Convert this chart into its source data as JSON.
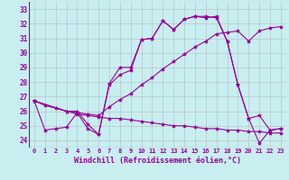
{
  "bg_color": "#c8eef0",
  "line_color": "#990099",
  "grid_color": "#b0b0b0",
  "xlabel": "Windchill (Refroidissement éolien,°C)",
  "yticks": [
    24,
    25,
    26,
    27,
    28,
    29,
    30,
    31,
    32,
    33
  ],
  "xlim": [
    -0.5,
    23.5
  ],
  "ylim": [
    23.5,
    33.5
  ],
  "xticks": [
    0,
    1,
    2,
    3,
    4,
    5,
    6,
    7,
    8,
    9,
    10,
    11,
    12,
    13,
    14,
    15,
    16,
    17,
    18,
    19,
    20,
    21,
    22,
    23
  ],
  "lines": [
    {
      "x": [
        0,
        1,
        2,
        3,
        4,
        5,
        6,
        7,
        8,
        9,
        10,
        11,
        12,
        13,
        14,
        15,
        16,
        17,
        18,
        19,
        20,
        21,
        22,
        23
      ],
      "y": [
        26.7,
        24.7,
        24.8,
        24.9,
        25.9,
        24.8,
        24.4,
        27.8,
        28.5,
        28.8,
        30.9,
        31.0,
        32.2,
        31.6,
        32.3,
        32.5,
        32.5,
        32.4,
        30.8,
        27.8,
        25.5,
        25.7,
        24.7,
        24.8
      ]
    },
    {
      "x": [
        0,
        3,
        4,
        5,
        6,
        7,
        8,
        9,
        10,
        11,
        12,
        13,
        14,
        15,
        16,
        17,
        18,
        19,
        20,
        21,
        22,
        23
      ],
      "y": [
        26.7,
        26.0,
        25.9,
        25.8,
        25.7,
        26.3,
        26.8,
        27.2,
        27.8,
        28.3,
        28.9,
        29.4,
        29.9,
        30.4,
        30.8,
        31.3,
        31.4,
        31.5,
        30.8,
        31.5,
        31.7,
        31.8
      ]
    },
    {
      "x": [
        0,
        3,
        4,
        5,
        6,
        7,
        8,
        9,
        10,
        11,
        12,
        13,
        14,
        15,
        16,
        17,
        18,
        19,
        20,
        21,
        22,
        23
      ],
      "y": [
        26.7,
        26.0,
        26.0,
        25.1,
        24.4,
        27.9,
        29.0,
        29.0,
        30.9,
        31.0,
        32.2,
        31.6,
        32.3,
        32.5,
        32.4,
        32.5,
        30.8,
        27.8,
        25.5,
        23.8,
        24.7,
        24.8
      ]
    },
    {
      "x": [
        0,
        1,
        2,
        3,
        4,
        5,
        6,
        7,
        8,
        9,
        10,
        11,
        12,
        13,
        14,
        15,
        16,
        17,
        18,
        19,
        20,
        21,
        22,
        23
      ],
      "y": [
        26.7,
        26.4,
        26.2,
        26.0,
        25.8,
        25.7,
        25.6,
        25.5,
        25.5,
        25.4,
        25.3,
        25.2,
        25.1,
        25.0,
        25.0,
        24.9,
        24.8,
        24.8,
        24.7,
        24.7,
        24.6,
        24.6,
        24.5,
        24.5
      ]
    }
  ]
}
